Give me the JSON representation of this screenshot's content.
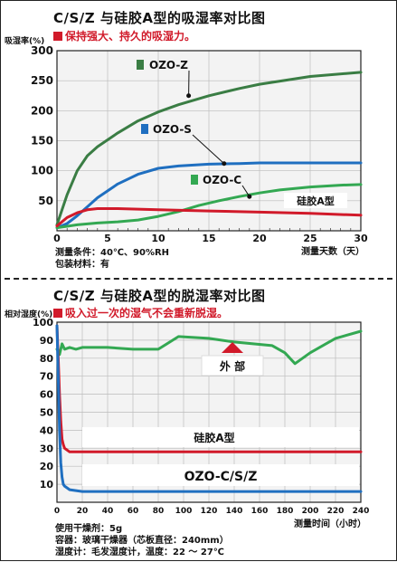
{
  "chart_data": [
    {
      "type": "line",
      "title": "C/S/Z 与硅胶A型的吸湿率对比图",
      "subtitle": "保持强大、持久的吸湿力。",
      "ylabel": "吸湿率(%)",
      "xlabel": "测量天数（天）",
      "xlim": [
        0,
        30
      ],
      "ylim": [
        0,
        300
      ],
      "xticks": [
        0,
        5,
        10,
        15,
        20,
        25,
        30
      ],
      "yticks": [
        50,
        100,
        150,
        200,
        250,
        300
      ],
      "grid": true,
      "notes": [
        "测量条件：40℃、90%RH",
        "包装材料：有"
      ],
      "series": [
        {
          "name": "OZO-Z",
          "color": "#3a7d44",
          "x": [
            0,
            1,
            2,
            3,
            4,
            6,
            8,
            10,
            12,
            15,
            18,
            20,
            25,
            30
          ],
          "y": [
            10,
            60,
            100,
            125,
            140,
            163,
            183,
            198,
            210,
            225,
            237,
            244,
            257,
            264
          ]
        },
        {
          "name": "OZO-S",
          "color": "#1f6fc0",
          "x": [
            0,
            1,
            2,
            3,
            4,
            6,
            8,
            10,
            12,
            15,
            18,
            20,
            25,
            30
          ],
          "y": [
            5,
            12,
            25,
            40,
            55,
            78,
            94,
            104,
            108,
            111,
            112,
            113,
            113,
            113
          ]
        },
        {
          "name": "OZO-C",
          "color": "#33a852",
          "x": [
            0,
            2,
            4,
            6,
            8,
            10,
            12,
            14,
            16,
            18,
            20,
            22,
            25,
            28,
            30
          ],
          "y": [
            5,
            10,
            13,
            15,
            18,
            24,
            32,
            42,
            50,
            57,
            63,
            68,
            73,
            76,
            77
          ]
        },
        {
          "name": "硅胶A型",
          "color": "#d11a2a",
          "x": [
            0,
            1,
            2,
            3,
            4,
            6,
            10,
            15,
            20,
            25,
            30
          ],
          "y": [
            8,
            22,
            30,
            35,
            37,
            37,
            35,
            33,
            31,
            29,
            26
          ]
        }
      ]
    },
    {
      "type": "line",
      "title": "C/S/Z 与硅胶A型的脱湿率对比图",
      "subtitle": "吸入过一次的湿气不会重新脱湿。",
      "ylabel": "相对湿度(%)",
      "xlabel": "测量时间（小时）",
      "xlim": [
        0,
        240
      ],
      "ylim": [
        0,
        100
      ],
      "xticks": [
        0,
        20,
        40,
        60,
        80,
        100,
        120,
        140,
        160,
        180,
        200,
        220,
        240
      ],
      "yticks": [
        10,
        20,
        30,
        40,
        50,
        60,
        70,
        80,
        90,
        100
      ],
      "grid": true,
      "notes": [
        "使用干燥剂：5g",
        "容器：玻璃干燥器（芯板直径：240mm）",
        "湿度计：毛发湿度计，温度：22 ～ 27℃"
      ],
      "series": [
        {
          "name": "外 部",
          "color": "#33a852",
          "x": [
            0,
            2,
            4,
            6,
            10,
            15,
            20,
            40,
            60,
            80,
            96,
            120,
            140,
            170,
            180,
            188,
            200,
            220,
            240
          ],
          "y": [
            85,
            82,
            88,
            85,
            86,
            85,
            86,
            86,
            85,
            85,
            92,
            91,
            89,
            87,
            83,
            77,
            83,
            91,
            95
          ]
        },
        {
          "name": "硅胶A型",
          "color": "#d11a2a",
          "x": [
            0,
            1,
            2,
            3,
            4,
            5,
            6,
            8,
            10,
            20,
            40,
            80,
            120,
            160,
            200,
            240
          ],
          "y": [
            98,
            80,
            60,
            45,
            35,
            32,
            30,
            29,
            28,
            28,
            28,
            28,
            28,
            28,
            28,
            28
          ]
        },
        {
          "name": "OZO-C/S/Z",
          "color": "#1f6fc0",
          "x": [
            0,
            1,
            2,
            3,
            4,
            5,
            6,
            8,
            10,
            20,
            40,
            80,
            120,
            160,
            200,
            240
          ],
          "y": [
            98,
            70,
            40,
            22,
            14,
            10,
            9,
            8,
            7,
            6,
            6,
            6,
            6,
            6,
            6,
            6
          ]
        }
      ],
      "annotations": [
        "外 部",
        "硅胶A型",
        "OZO-C/S/Z"
      ]
    }
  ]
}
